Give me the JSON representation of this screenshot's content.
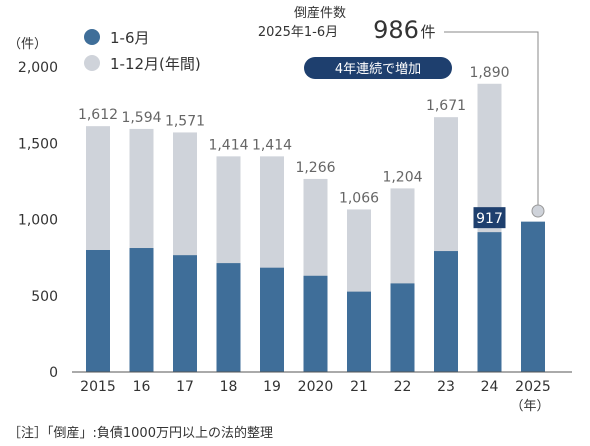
{
  "chart_data": {
    "type": "bar",
    "y_unit": "（件）",
    "ylim": [
      0,
      2000
    ],
    "yticks": [
      0,
      500,
      1000,
      1500,
      2000
    ],
    "ytick_labels": [
      "0",
      "500",
      "1,000",
      "1,500",
      "2,000"
    ],
    "categories": [
      "2015",
      "16",
      "17",
      "18",
      "19",
      "2020",
      "21",
      "22",
      "23",
      "24",
      "2025"
    ],
    "x_unit": "（年）",
    "series": [
      {
        "name": "1-12月(年間)",
        "color": "#cfd3da",
        "values": [
          1612,
          1594,
          1571,
          1414,
          1414,
          1266,
          1066,
          1204,
          1671,
          1890,
          null
        ],
        "data_labels": [
          "1,612",
          "1,594",
          "1,571",
          "1,414",
          "1,414",
          "1,266",
          "1,066",
          "1,204",
          "1,671",
          "1,890",
          ""
        ]
      },
      {
        "name": "1-6月",
        "color": "#3f6e99",
        "values": [
          800,
          813,
          766,
          714,
          684,
          631,
          527,
          581,
          793,
          917,
          986
        ]
      }
    ],
    "legend": {
      "position": "top-left"
    },
    "grid": false,
    "annotations": {
      "half_2024_label": "917",
      "callout_title": "倒産件数",
      "callout_period": "2025年1-6月",
      "callout_value": "986",
      "callout_unit": "件",
      "badge": "4年連続で増加"
    },
    "footnote": "［注］「倒産」:負債1000万円以上の法的整理"
  }
}
